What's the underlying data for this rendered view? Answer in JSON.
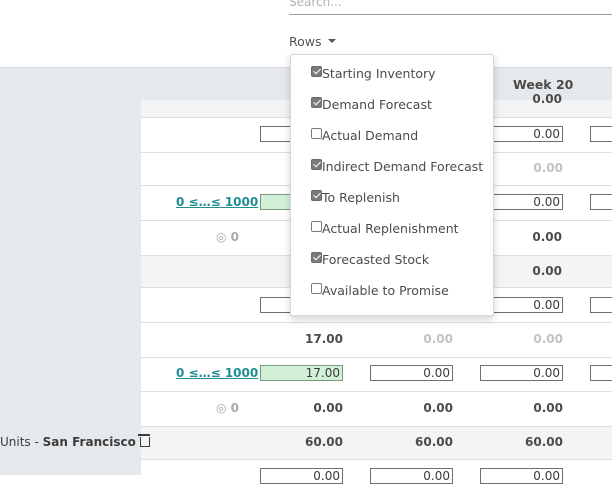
{
  "search": {
    "placeholder": "Search..."
  },
  "rows_menu": {
    "label": "Rows",
    "items": [
      {
        "label": "Starting Inventory",
        "checked": true
      },
      {
        "label": "Demand Forecast",
        "checked": true
      },
      {
        "label": "Actual Demand",
        "checked": false
      },
      {
        "label": "Indirect Demand Forecast",
        "checked": true
      },
      {
        "label": "To Replenish",
        "checked": true
      },
      {
        "label": "Actual Replenishment",
        "checked": false
      },
      {
        "label": "Forecasted Stock",
        "checked": true
      },
      {
        "label": "Available to Promise",
        "checked": false
      }
    ]
  },
  "grid": {
    "week_header": "Week 20",
    "top_partial_value": "0.00",
    "row1_input": "0.00",
    "row2_muted": "0.00",
    "row3": {
      "range": "0 ≤…≤ 1000",
      "input": "0.00"
    },
    "row4": {
      "icon_zero": "0",
      "value": "0.00"
    },
    "row5_value": "0.00",
    "row6_input": "0.00",
    "row7": {
      "c1": "17.00",
      "c2": "0.00",
      "c3": "0.00"
    },
    "row8": {
      "range": "0 ≤…≤ 1000",
      "green_input": "17.00",
      "input2": "0.00",
      "input3": "0.00"
    },
    "row9": {
      "icon_zero": "0",
      "c1": "0.00",
      "c2": "0.00",
      "c3": "0.00"
    },
    "row10": {
      "label_prefix": "Units",
      "label_sep": " - ",
      "location": "San Francisco",
      "c1": "60.00",
      "c2": "60.00",
      "c3": "60.00"
    },
    "row11": {
      "input1": "0.00",
      "input2": "0.00",
      "input3": "0.00"
    }
  }
}
